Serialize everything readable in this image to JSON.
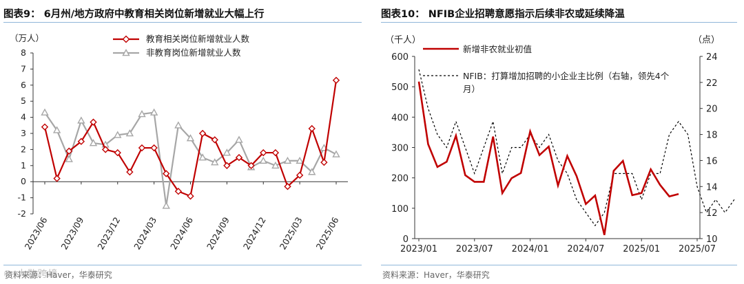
{
  "left": {
    "title": "图表9：  6月州/地方政府中教育相关岗位新增就业大幅上行",
    "source": "资料来源：Haver，华泰研究",
    "watermark": "© 大数跨境",
    "chart_data": {
      "type": "line",
      "unit_label": "（万人）",
      "ylim": [
        -2,
        8
      ],
      "yticks": [
        "-2",
        "-1",
        "0",
        "1",
        "2",
        "3",
        "4",
        "5",
        "6",
        "7",
        "8"
      ],
      "x": [
        "2023/06",
        "2023/07",
        "2023/08",
        "2023/09",
        "2023/10",
        "2023/11",
        "2023/12",
        "2024/01",
        "2024/02",
        "2024/03",
        "2024/04",
        "2024/05",
        "2024/06",
        "2024/07",
        "2024/08",
        "2024/09",
        "2024/10",
        "2024/11",
        "2024/12",
        "2025/01",
        "2025/02",
        "2025/03",
        "2025/04",
        "2025/05",
        "2025/06"
      ],
      "xtick_labels": [
        "2023/06",
        "2023/09",
        "2023/12",
        "2024/03",
        "2024/06",
        "2024/09",
        "2024/12",
        "2025/03",
        "2025/06"
      ],
      "series": [
        {
          "name": "教育相关岗位新增就业人数",
          "color": "#c00000",
          "marker": "diamond",
          "values": [
            3.4,
            0.2,
            1.9,
            2.5,
            3.7,
            2.0,
            1.8,
            0.6,
            2.1,
            2.1,
            0.5,
            -0.6,
            -0.9,
            3.0,
            2.6,
            1.0,
            1.5,
            1.0,
            1.8,
            1.8,
            -0.3,
            0.4,
            3.3,
            1.2,
            6.3
          ]
        },
        {
          "name": "非教育岗位新增就业人数",
          "color": "#a6a6a6",
          "marker": "triangle",
          "values": [
            4.3,
            3.2,
            1.4,
            3.8,
            2.4,
            2.3,
            2.9,
            3.0,
            4.2,
            4.3,
            -1.5,
            3.5,
            2.7,
            1.5,
            1.2,
            1.8,
            2.6,
            0.9,
            1.3,
            1.0,
            1.3,
            1.3,
            0.6,
            2.1,
            1.7
          ]
        }
      ]
    }
  },
  "right": {
    "title": "图表10：  NFIB企业招聘意愿指示后续非农或延续降温",
    "source": "资料来源：Haver，华泰研究",
    "chart_data": {
      "type": "line",
      "left_unit_label": "（千人）",
      "right_unit_label": "（点）",
      "ylim_left": [
        0,
        600
      ],
      "ylim_right": [
        10,
        24
      ],
      "yticks_left": [
        "0",
        "100",
        "200",
        "300",
        "400",
        "500",
        "600"
      ],
      "yticks_right": [
        "10",
        "12",
        "14",
        "16",
        "18",
        "20",
        "22",
        "24"
      ],
      "xtick_labels": [
        "2023/01",
        "2023/07",
        "2024/01",
        "2024/07",
        "2025/01",
        "2025/07"
      ],
      "series": [
        {
          "name": "新增非农就业初值",
          "color": "#c00000",
          "axis": "left",
          "start": "2023/01",
          "values": [
            517,
            311,
            236,
            253,
            339,
            209,
            187,
            187,
            336,
            150,
            199,
            216,
            353,
            275,
            303,
            175,
            272,
            206,
            114,
            142,
            12,
            223,
            256,
            143,
            150,
            228,
            177,
            139,
            147
          ]
        },
        {
          "name": "NFIB：打算增加招聘的小企业主比例（右轴，领先4个月）",
          "legend_lines": [
            "NFIB：打算增加招聘的小企业主比例（右轴，领先4个",
            "月）"
          ],
          "color": "#000000",
          "axis": "right",
          "dash": true,
          "start": "2023/01",
          "values": [
            23,
            20,
            18,
            17,
            19,
            17,
            15,
            17,
            19,
            15,
            17,
            17,
            18,
            17,
            18,
            16,
            15,
            13,
            12,
            11,
            12,
            15,
            15,
            15,
            13,
            15,
            15,
            18,
            19,
            18,
            14,
            12,
            13,
            12,
            13
          ]
        }
      ]
    }
  }
}
